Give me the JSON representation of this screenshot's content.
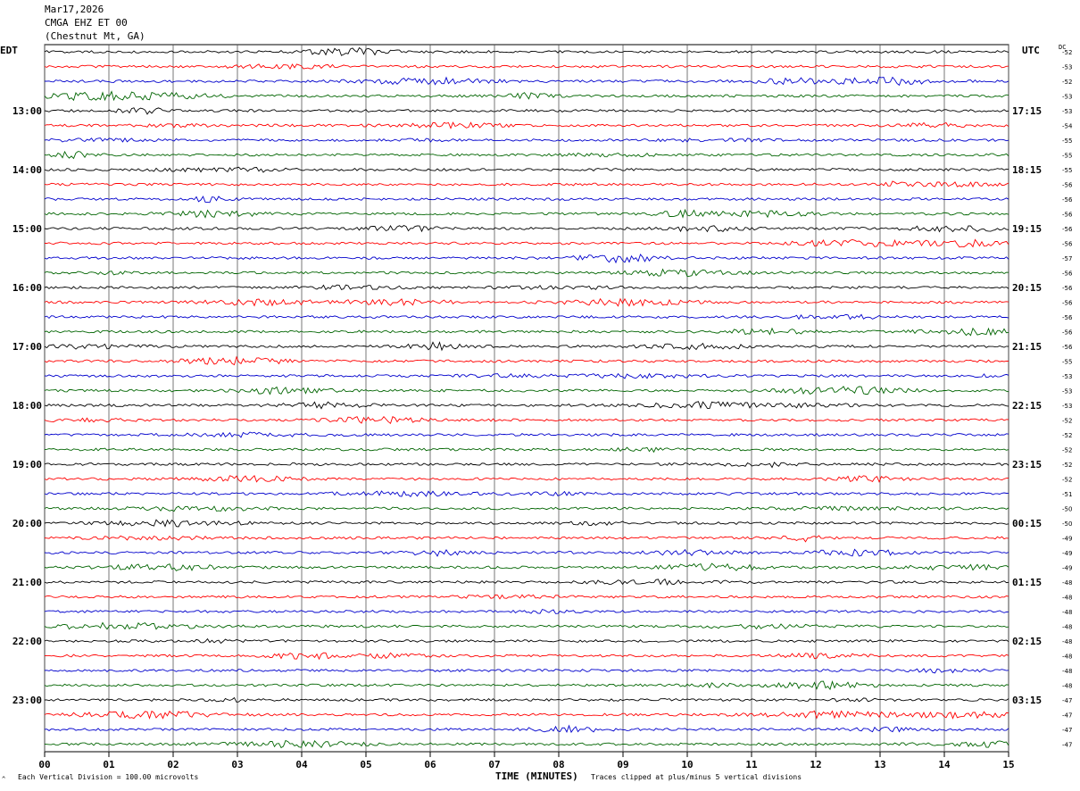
{
  "header": {
    "date": "Mar17,2026",
    "station": "CMGA EHZ ET 00",
    "location": "(Chestnut Mt, GA)"
  },
  "labels": {
    "left_zone": "EDT",
    "right_zone": "UTC",
    "dc": "DC",
    "corner_mark": "^",
    "division_note": "Each Vertical Division =  100.00 microvolts",
    "time_axis": "TIME (MINUTES)",
    "clip_note": "Traces clipped at plus/minus 5 vertical divisions"
  },
  "chart_data": {
    "type": "line",
    "title": "",
    "xlabel": "TIME (MINUTES)",
    "xlim": [
      0,
      15
    ],
    "x_ticks": [
      "00",
      "01",
      "02",
      "03",
      "04",
      "05",
      "06",
      "07",
      "08",
      "09",
      "10",
      "11",
      "12",
      "13",
      "14",
      "15"
    ],
    "rows_per_hour": 4,
    "left_hour_labels": [
      "13:00",
      "14:00",
      "15:00",
      "16:00",
      "17:00",
      "18:00",
      "19:00",
      "20:00",
      "21:00",
      "22:00",
      "23:00"
    ],
    "right_hour_labels": [
      "17:15",
      "18:15",
      "19:15",
      "20:15",
      "21:15",
      "22:15",
      "23:15",
      "00:15",
      "01:15",
      "02:15",
      "03:15"
    ],
    "first_label_row": 4,
    "trace_colors": [
      "#000000",
      "#ff0000",
      "#0000cc",
      "#006400"
    ],
    "dc_offsets": [
      "-52",
      "-53",
      "-52",
      "-53",
      "-53",
      "-54",
      "-55",
      "-55",
      "-55",
      "-56",
      "-56",
      "-56",
      "-56",
      "-56",
      "-57",
      "-56",
      "-56",
      "-56",
      "-56",
      "-56",
      "-56",
      "-55",
      "-53",
      "-53",
      "-53",
      "-52",
      "-52",
      "-52",
      "-52",
      "-52",
      "-51",
      "-50",
      "-50",
      "-49",
      "-49",
      "-49",
      "-48",
      "-48",
      "-48",
      "-48",
      "-48",
      "-48",
      "-48",
      "-48",
      "-47",
      "-47",
      "-47",
      "-47"
    ]
  }
}
